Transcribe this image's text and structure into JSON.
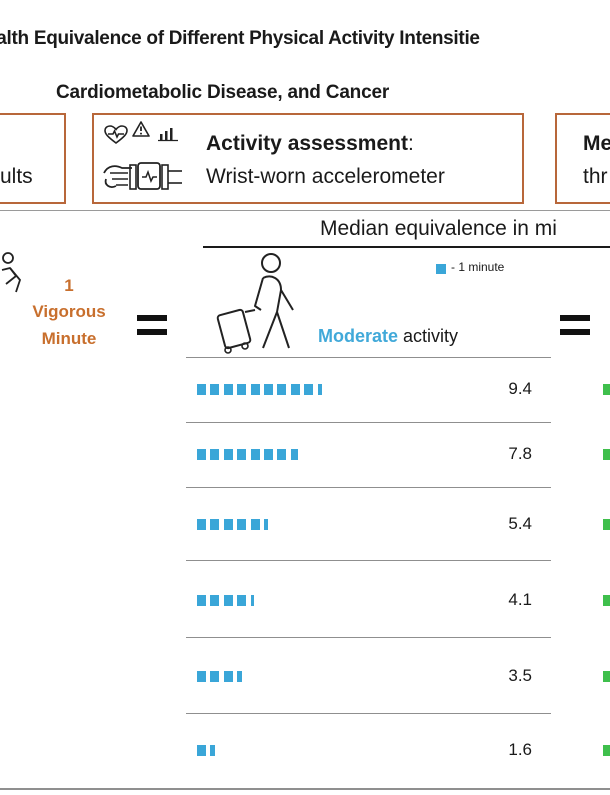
{
  "title": "ealth Equivalence of Different Physical Activity Intensitie",
  "subtitle": "Cardiometabolic Disease, and Cancer",
  "boxes": {
    "left": {
      "text": "ults"
    },
    "middle": {
      "title": "Activity assessment",
      "colon": ":",
      "value": "Wrist-worn accelerometer"
    },
    "right": {
      "title": "Me",
      "value": "thr"
    }
  },
  "median_label": "Median equivalence in mi",
  "vigorous": {
    "number": "1",
    "word": "Vigorous",
    "unit": "Minute"
  },
  "legend": {
    "text": "- 1 minute",
    "color": "#3aa6d8"
  },
  "moderate": {
    "highlight": "Moderate",
    "rest": " activity",
    "color": "#41a9d9"
  },
  "accent_color": "#c86f2d",
  "secondary_color": "#3fbf4c",
  "rows": [
    {
      "value": "9.4",
      "minutes": 9.4
    },
    {
      "value": "7.8",
      "minutes": 7.8
    },
    {
      "value": "5.4",
      "minutes": 5.4
    },
    {
      "value": "4.1",
      "minutes": 4.1
    },
    {
      "value": "3.5",
      "minutes": 3.5
    },
    {
      "value": "1.6",
      "minutes": 1.6
    }
  ],
  "icons": [
    "person-running-icon",
    "heart-rate-icon",
    "warning-icon",
    "bar-chart-icon",
    "wristwatch-icon",
    "person-walking-luggage-icon"
  ]
}
